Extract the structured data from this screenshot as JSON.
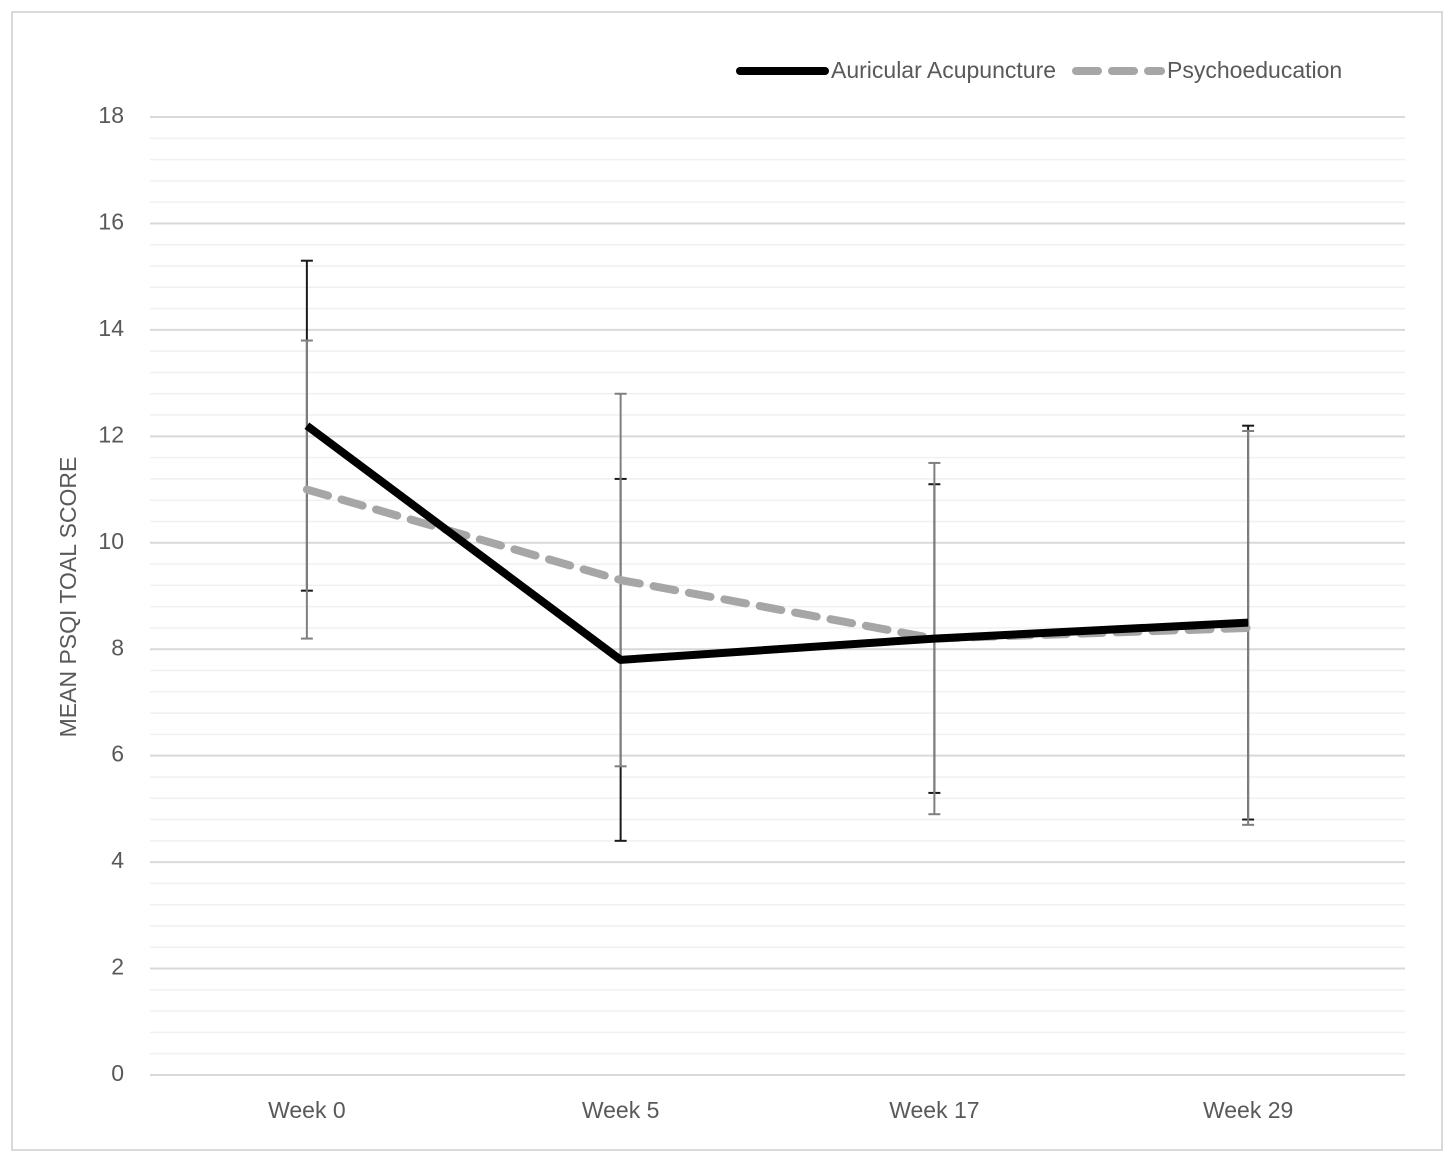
{
  "chart_data": {
    "type": "line",
    "y_label": "MEAN PSQI TOAL SCORE",
    "categories": [
      "Week 0",
      "Week 5",
      "Week 17",
      "Week 29"
    ],
    "series": [
      {
        "name": "Auricular Acupuncture",
        "color": "#000000",
        "dash": false,
        "error_color": "#1a1a1a",
        "values": [
          12.2,
          7.8,
          8.2,
          8.5
        ],
        "errors": [
          3.1,
          3.4,
          2.9,
          3.7
        ]
      },
      {
        "name": "Psychoeducation",
        "color": "#a6a6a6",
        "dash": true,
        "error_color": "#7f7f7f",
        "values": [
          11.0,
          9.3,
          8.2,
          8.4
        ],
        "errors": [
          2.8,
          3.5,
          3.3,
          3.7
        ]
      }
    ],
    "ylim": [
      0,
      18
    ],
    "yticks": [
      0,
      2,
      4,
      6,
      8,
      10,
      12,
      14,
      16,
      18
    ],
    "minor_yticks": [
      0.4,
      0.8,
      1.2,
      1.6,
      2.4,
      2.8,
      3.2,
      3.6,
      4.4,
      4.8,
      5.2,
      5.6,
      6.4,
      6.8,
      7.2,
      7.6,
      8.4,
      8.8,
      9.2,
      9.6,
      10.4,
      10.8,
      11.2,
      11.6,
      12.4,
      12.8,
      13.2,
      13.6,
      14.4,
      14.8,
      15.2,
      15.6,
      16.4,
      16.8,
      17.2,
      17.6
    ],
    "grid": true,
    "legend": "top-right"
  }
}
